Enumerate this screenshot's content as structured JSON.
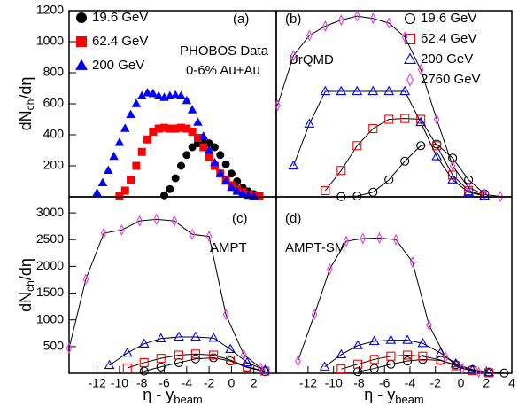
{
  "chart_data": [
    {
      "type": "scatter",
      "xlim": [
        -14.5,
        4
      ],
      "ylim": [
        0,
        1200
      ],
      "yticks": [
        200,
        400,
        600,
        800,
        1000,
        1200
      ],
      "y_label": [
        "dN",
        "ch",
        "/dη"
      ],
      "annotations": [
        "(a)",
        "PHOBOS Data",
        "0-6% Au+Au"
      ],
      "series": [
        {
          "name": "19.6 GeV",
          "color": "#000000",
          "marker": "circle",
          "filled": true,
          "x": [
            -6,
            -5.5,
            -5,
            -4.5,
            -4,
            -3.5,
            -3,
            -2.5,
            -2,
            -1.5,
            -1,
            -0.5,
            0,
            0.5,
            1,
            1.5,
            2,
            2.5
          ],
          "values": [
            10,
            50,
            120,
            200,
            270,
            320,
            345,
            350,
            345,
            320,
            270,
            210,
            150,
            100,
            60,
            35,
            18,
            8
          ]
        },
        {
          "name": "62.4 GeV",
          "color": "#ff0000",
          "marker": "square",
          "filled": true,
          "x": [
            -10,
            -9.5,
            -9,
            -8.5,
            -8,
            -7.5,
            -7,
            -6.5,
            -6,
            -5.5,
            -5,
            -4.5,
            -4,
            -3.5,
            -3,
            -2.5,
            -2,
            -1.5,
            -1,
            -0.5,
            0,
            0.5,
            1,
            1.5,
            2,
            2.5
          ],
          "values": [
            5,
            40,
            110,
            200,
            290,
            370,
            420,
            440,
            445,
            440,
            440,
            445,
            440,
            420,
            380,
            320,
            260,
            200,
            150,
            110,
            75,
            50,
            30,
            15,
            8,
            3
          ]
        },
        {
          "name": "200 GeV",
          "color": "#0000ff",
          "marker": "triangle",
          "filled": true,
          "x": [
            -12,
            -11.5,
            -11,
            -10.5,
            -10,
            -9.5,
            -9,
            -8.5,
            -8,
            -7.5,
            -7,
            -6.5,
            -6,
            -5.5,
            -5,
            -4.5,
            -4,
            -3.5,
            -3,
            -2.5,
            -2,
            -1.5,
            -1,
            -0.5,
            0,
            0.5,
            1,
            1.5,
            2
          ],
          "values": [
            25,
            90,
            170,
            260,
            350,
            440,
            530,
            600,
            650,
            670,
            665,
            650,
            640,
            650,
            655,
            650,
            620,
            560,
            480,
            390,
            300,
            220,
            150,
            100,
            60,
            35,
            18,
            8,
            3
          ]
        }
      ]
    },
    {
      "type": "scatter",
      "xlim": [
        -14.5,
        4
      ],
      "ylim": [
        0,
        1200
      ],
      "line_color": "#000000",
      "annotations": [
        "(b)",
        "UrQMD"
      ],
      "series": [
        {
          "name": "19.6 GeV",
          "color": "#000000",
          "marker": "circle",
          "filled": false,
          "x": [
            -9.4,
            -8.15,
            -6.9,
            -5.65,
            -4.4,
            -3.15,
            -1.9,
            -0.65,
            0.6,
            1.85
          ],
          "values": [
            2,
            5,
            30,
            110,
            230,
            330,
            340,
            250,
            110,
            20
          ]
        },
        {
          "name": "62.4 GeV",
          "color": "#ff0000",
          "marker": "square",
          "filled": false,
          "x": [
            -10.65,
            -9.4,
            -8.15,
            -6.9,
            -5.65,
            -4.4,
            -3.15,
            -1.9,
            -0.65,
            0.6,
            1.85
          ],
          "values": [
            40,
            170,
            330,
            440,
            500,
            505,
            500,
            330,
            140,
            40,
            8
          ]
        },
        {
          "name": "200 GeV",
          "color": "#0000ff",
          "marker": "triangle",
          "filled": false,
          "x": [
            -13.15,
            -11.9,
            -10.65,
            -9.4,
            -8.15,
            -6.9,
            -5.65,
            -4.4,
            -3.15,
            -1.9,
            -0.65,
            0.6,
            1.85
          ],
          "values": [
            200,
            470,
            680,
            680,
            680,
            680,
            680,
            680,
            480,
            260,
            110,
            30,
            6
          ]
        },
        {
          "name": "2760 GeV",
          "color": "#e040e0",
          "marker": "diamond",
          "filled": false,
          "x": [
            -14.4,
            -13.15,
            -11.9,
            -10.65,
            -9.4,
            -8.15,
            -6.9,
            -5.65,
            -4.4,
            -3.15,
            -1.9,
            -0.65,
            0.6,
            1.85,
            3.1
          ],
          "values": [
            590,
            910,
            1040,
            1100,
            1140,
            1165,
            1150,
            1120,
            1030,
            820,
            500,
            200,
            60,
            15,
            3
          ]
        }
      ]
    },
    {
      "type": "scatter",
      "xlim": [
        -14.5,
        4
      ],
      "ylim": [
        0,
        3300
      ],
      "line_color": "#000000",
      "yticks": [
        500,
        1000,
        1500,
        2000,
        2500,
        3000
      ],
      "xticks": [
        -12,
        -10,
        -8,
        -6,
        -4,
        -2,
        0,
        2
      ],
      "y_label": [
        "dN",
        "ch",
        "/dη"
      ],
      "x_label": [
        "η - y",
        "beam"
      ],
      "annotations": [
        "(c)",
        "AMPT"
      ],
      "series": [
        {
          "color": "#000000",
          "marker": "circle",
          "filled": false,
          "x": [
            -7.8,
            -6.3,
            -4.7,
            -3.2,
            -1.6,
            -0.1,
            1.4,
            3.0
          ],
          "values": [
            40,
            120,
            200,
            270,
            290,
            230,
            110,
            30
          ]
        },
        {
          "color": "#ff0000",
          "marker": "square",
          "filled": false,
          "x": [
            -9.3,
            -7.8,
            -6.3,
            -4.7,
            -3.2,
            -1.6,
            -0.1,
            1.4,
            3.0
          ],
          "values": [
            100,
            200,
            280,
            340,
            360,
            340,
            250,
            120,
            40
          ]
        },
        {
          "color": "#0000ff",
          "marker": "triangle",
          "filled": false,
          "x": [
            -10.9,
            -9.3,
            -7.8,
            -6.3,
            -4.7,
            -3.2,
            -1.6,
            -0.1,
            1.4,
            3.0
          ],
          "values": [
            150,
            380,
            550,
            650,
            680,
            680,
            660,
            450,
            200,
            60
          ]
        },
        {
          "color": "#e040e0",
          "marker": "diamond",
          "filled": false,
          "x": [
            -14.5,
            -13.0,
            -11.4,
            -9.8,
            -8.2,
            -6.7,
            -5.1,
            -3.5,
            -2.0,
            -0.5,
            1.1,
            2.6
          ],
          "values": [
            470,
            1760,
            2620,
            2680,
            2850,
            2880,
            2850,
            2600,
            2560,
            1100,
            350,
            100
          ]
        }
      ]
    },
    {
      "type": "scatter",
      "xlim": [
        -14.5,
        4
      ],
      "ylim": [
        0,
        3300
      ],
      "line_color": "#000000",
      "xticks": [
        -12,
        -10,
        -8,
        -6,
        -4,
        -2,
        0,
        2,
        4
      ],
      "x_label": [
        "η - y",
        "beam"
      ],
      "annotations": [
        "(d)",
        "AMPT-SM"
      ],
      "series": [
        {
          "color": "#000000",
          "marker": "circle",
          "filled": false,
          "x": [
            -8.1,
            -6.8,
            -5.5,
            -4.2,
            -3.0,
            -1.6,
            -0.4,
            0.9,
            2.2,
            3.4
          ],
          "values": [
            30,
            90,
            170,
            230,
            260,
            240,
            160,
            70,
            20,
            5
          ]
        },
        {
          "color": "#ff0000",
          "marker": "square",
          "filled": false,
          "x": [
            -9.4,
            -8.1,
            -6.8,
            -5.5,
            -4.2,
            -3.0,
            -1.6,
            -0.4,
            0.9,
            2.2
          ],
          "values": [
            80,
            170,
            260,
            320,
            340,
            320,
            250,
            140,
            50,
            10
          ]
        },
        {
          "color": "#0000ff",
          "marker": "triangle",
          "filled": false,
          "x": [
            -10.7,
            -9.4,
            -8.1,
            -6.8,
            -5.5,
            -4.2,
            -3.0,
            -1.6,
            -0.4,
            0.9,
            2.2
          ],
          "values": [
            120,
            350,
            520,
            600,
            620,
            620,
            560,
            380,
            180,
            60,
            15
          ]
        },
        {
          "color": "#e040e0",
          "marker": "diamond",
          "filled": false,
          "x": [
            -12.8,
            -11.5,
            -10.3,
            -9.0,
            -7.7,
            -6.4,
            -5.1,
            -3.8,
            -2.5,
            -1.2,
            0.1,
            1.4
          ],
          "values": [
            230,
            1100,
            1950,
            2470,
            2520,
            2530,
            2500,
            2080,
            900,
            300,
            90,
            20
          ]
        }
      ]
    }
  ]
}
